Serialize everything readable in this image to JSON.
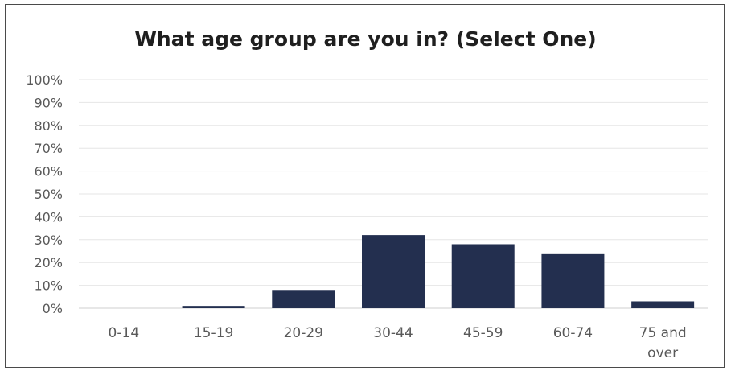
{
  "chart_data": {
    "type": "bar",
    "title": "What age group are you in? (Select One)",
    "categories": [
      "0-14",
      "15-19",
      "20-29",
      "30-44",
      "45-59",
      "60-74",
      "75 and over"
    ],
    "values": [
      0,
      1,
      8,
      32,
      28,
      24,
      3
    ],
    "ylim": [
      0,
      100
    ],
    "yticks": [
      "0%",
      "10%",
      "20%",
      "30%",
      "40%",
      "50%",
      "60%",
      "70%",
      "80%",
      "90%",
      "100%"
    ],
    "xlabel": "",
    "ylabel": "",
    "grid": true,
    "bar_color": "#232f4f",
    "grid_color": "#e6e6e6",
    "legend": "none"
  }
}
